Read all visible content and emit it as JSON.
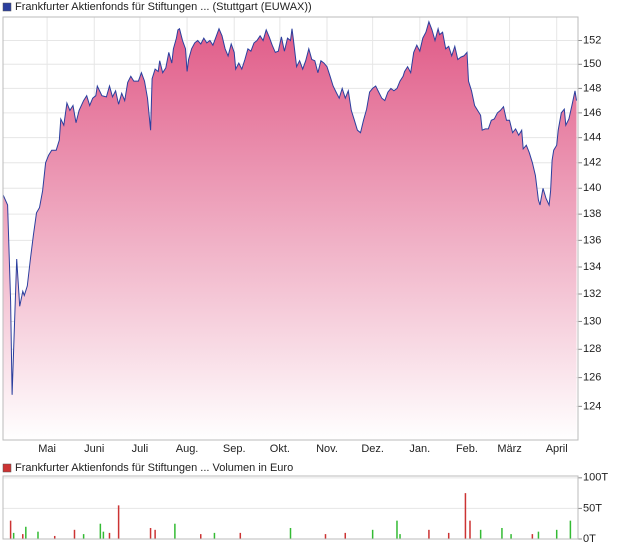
{
  "chart_data": [
    {
      "type": "area",
      "series": [
        {
          "name": "Frankfurter Aktienfonds für Stiftungen ... (Stuttgart (EUWAX))",
          "color": "#2b3f9e",
          "fill_top": "#e05a87",
          "values": [
            139.5,
            138.7,
            131.5,
            124.8,
            127.9,
            134.6,
            131.1,
            132.2,
            131.9,
            132.6,
            134.6,
            136.4,
            138.1,
            138.5,
            139.8,
            142.0,
            142.6,
            143.0,
            143.0,
            143.8,
            145.5,
            145.0,
            146.8,
            146.2,
            146.6,
            145.2,
            146.2,
            147.0,
            147.4,
            146.6,
            147.2,
            147.4,
            148.2,
            147.4,
            147.3,
            148.2,
            147.3,
            147.8,
            146.7,
            147.6,
            147.0,
            148.5,
            149.0,
            148.6,
            148.6,
            149.3,
            148.6,
            147.2,
            144.6,
            148.8,
            149.6,
            149.4,
            150.3,
            149.3,
            149.7,
            151.0,
            150.1,
            151.3,
            152.2,
            152.9,
            153.0,
            152.0,
            151.3,
            149.4,
            150.4,
            151.3,
            151.8,
            152.0,
            151.7,
            152.2,
            151.8,
            152.0,
            151.6,
            152.3,
            153.0,
            152.4,
            151.3,
            150.7,
            151.7,
            151.0,
            149.6,
            150.1,
            149.6,
            150.4,
            151.3,
            151.1,
            151.8,
            152.0,
            152.4,
            152.0,
            152.9,
            152.3,
            151.6,
            151.0,
            151.1,
            152.3,
            151.1,
            152.2,
            152.0,
            153.0,
            152.0,
            149.8,
            150.3,
            149.6,
            150.3,
            151.3,
            150.4,
            150.3,
            149.3,
            150.3,
            150.1,
            149.8,
            149.0,
            148.2,
            147.7,
            147.2,
            148.0,
            147.2,
            147.8,
            146.2,
            145.4,
            144.6,
            144.4,
            145.4,
            146.3,
            147.7,
            148.0,
            148.2,
            147.7,
            147.2,
            147.0,
            147.7,
            148.0,
            147.8,
            148.0,
            148.6,
            149.0,
            149.4,
            149.8,
            149.3,
            151.0,
            151.6,
            151.1,
            152.2,
            152.7,
            153.6,
            152.9,
            152.0,
            153.0,
            152.5,
            152.7,
            151.3,
            151.5,
            150.7,
            151.5,
            150.4,
            150.6,
            150.7,
            151.0,
            148.6,
            147.8,
            146.6,
            146.2,
            145.8,
            144.6,
            144.7,
            144.7,
            145.4,
            145.5,
            146.0,
            146.2,
            146.5,
            145.4,
            145.4,
            144.4,
            144.7,
            144.2,
            144.6,
            143.1,
            143.4,
            142.8,
            142.0,
            141.0,
            139.1,
            138.7,
            140.0,
            139.2,
            138.7,
            139.8,
            142.2,
            143.0,
            143.4,
            144.6,
            146.0,
            146.3,
            145.0,
            145.5,
            146.6,
            147.8,
            147.0
          ]
        }
      ],
      "x": [
        0,
        3,
        5,
        6,
        7,
        9,
        11,
        13,
        14,
        16,
        18,
        20,
        22,
        24,
        26,
        28,
        30,
        32,
        35,
        37,
        38,
        40,
        42,
        44,
        46,
        48,
        50,
        53,
        55,
        57,
        59,
        61,
        62,
        65,
        68,
        70,
        72,
        74,
        76,
        78,
        80,
        82,
        84,
        86,
        89,
        91,
        93,
        95,
        97,
        98,
        100,
        102,
        103,
        105,
        107,
        109,
        111,
        112,
        114,
        115,
        116,
        118,
        120,
        121,
        122,
        124,
        126,
        128,
        130,
        132,
        134,
        136,
        138,
        140,
        142,
        144,
        146,
        148,
        150,
        152,
        153,
        155,
        157,
        159,
        161,
        163,
        165,
        167,
        169,
        171,
        173,
        175,
        177,
        179,
        181,
        183,
        185,
        187,
        189,
        190,
        191,
        193,
        195,
        197,
        199,
        201,
        203,
        205,
        207,
        209,
        211,
        213,
        215,
        217,
        219,
        221,
        223,
        225,
        227,
        229,
        231,
        233,
        235,
        237,
        239,
        241,
        243,
        245,
        247,
        249,
        251,
        253,
        255,
        257,
        259,
        261,
        263,
        264,
        266,
        268,
        270,
        272,
        274,
        276,
        278,
        280,
        282,
        284,
        286,
        287,
        289,
        291,
        293,
        295,
        297,
        299,
        301,
        303,
        305,
        306,
        308,
        310,
        312,
        314,
        315,
        317,
        319,
        321,
        323,
        325,
        327,
        329,
        331,
        333,
        335,
        337,
        339,
        341,
        342,
        344,
        346,
        348,
        350,
        352,
        353,
        355,
        357,
        359,
        360,
        361,
        362,
        364,
        365,
        367,
        369,
        370,
        372,
        374,
        376,
        377
      ],
      "xlim": [
        0,
        378
      ],
      "xticks": [
        {
          "value": 29,
          "label": "Mai"
        },
        {
          "value": 60,
          "label": "Juni"
        },
        {
          "value": 90,
          "label": "Juli"
        },
        {
          "value": 121,
          "label": "Aug."
        },
        {
          "value": 152,
          "label": "Sep."
        },
        {
          "value": 182,
          "label": "Okt."
        },
        {
          "value": 213,
          "label": "Nov."
        },
        {
          "value": 243,
          "label": "Dez."
        },
        {
          "value": 274,
          "label": "Jan."
        },
        {
          "value": 305,
          "label": "Feb."
        },
        {
          "value": 333,
          "label": "März"
        },
        {
          "value": 364,
          "label": "April"
        }
      ],
      "ylim": [
        121.7,
        154
      ],
      "yticks": [
        124,
        126,
        128,
        130,
        132,
        134,
        136,
        138,
        140,
        142,
        144,
        146,
        148,
        150,
        152
      ],
      "log_scale": true,
      "grid": true
    },
    {
      "type": "bar",
      "series": [
        {
          "name": "Frankfurter Aktienfonds für Stiftungen ... Volumen in Euro",
          "color": "#cc3333",
          "values": [
            30,
            10,
            8,
            20,
            12,
            5,
            15,
            8,
            25,
            12,
            10,
            55,
            18,
            15,
            25,
            8,
            10,
            10,
            18,
            8,
            10,
            15,
            30,
            8,
            15,
            10,
            75,
            30,
            15,
            18,
            8,
            8,
            12,
            15,
            30
          ],
          "colors": [
            "#cc3333",
            "#33bb33",
            "#cc3333",
            "#33bb33",
            "#33bb33",
            "#cc3333",
            "#cc3333",
            "#33bb33",
            "#33bb33",
            "#33bb33",
            "#cc3333",
            "#cc3333",
            "#cc3333",
            "#cc3333",
            "#33bb33",
            "#cc3333",
            "#33bb33",
            "#cc3333",
            "#33bb33",
            "#cc3333",
            "#cc3333",
            "#33bb33",
            "#33bb33",
            "#33bb33",
            "#cc3333",
            "#cc3333",
            "#cc3333",
            "#cc3333",
            "#33bb33",
            "#33bb33",
            "#33bb33",
            "#cc3333",
            "#33bb33",
            "#33bb33",
            "#33bb33"
          ]
        }
      ],
      "x": [
        5,
        7,
        13,
        15,
        23,
        34,
        47,
        53,
        64,
        66,
        70,
        76,
        97,
        100,
        113,
        130,
        139,
        156,
        189,
        212,
        225,
        243,
        259,
        261,
        280,
        293,
        304,
        307,
        314,
        328,
        334,
        348,
        352,
        364,
        373
      ],
      "xlim": [
        0,
        378
      ],
      "ylim": [
        0,
        103
      ],
      "yticks": [
        {
          "value": 0,
          "label": "0T"
        },
        {
          "value": 50,
          "label": "50T"
        },
        {
          "value": 100,
          "label": "100T"
        }
      ],
      "grid": true
    }
  ]
}
